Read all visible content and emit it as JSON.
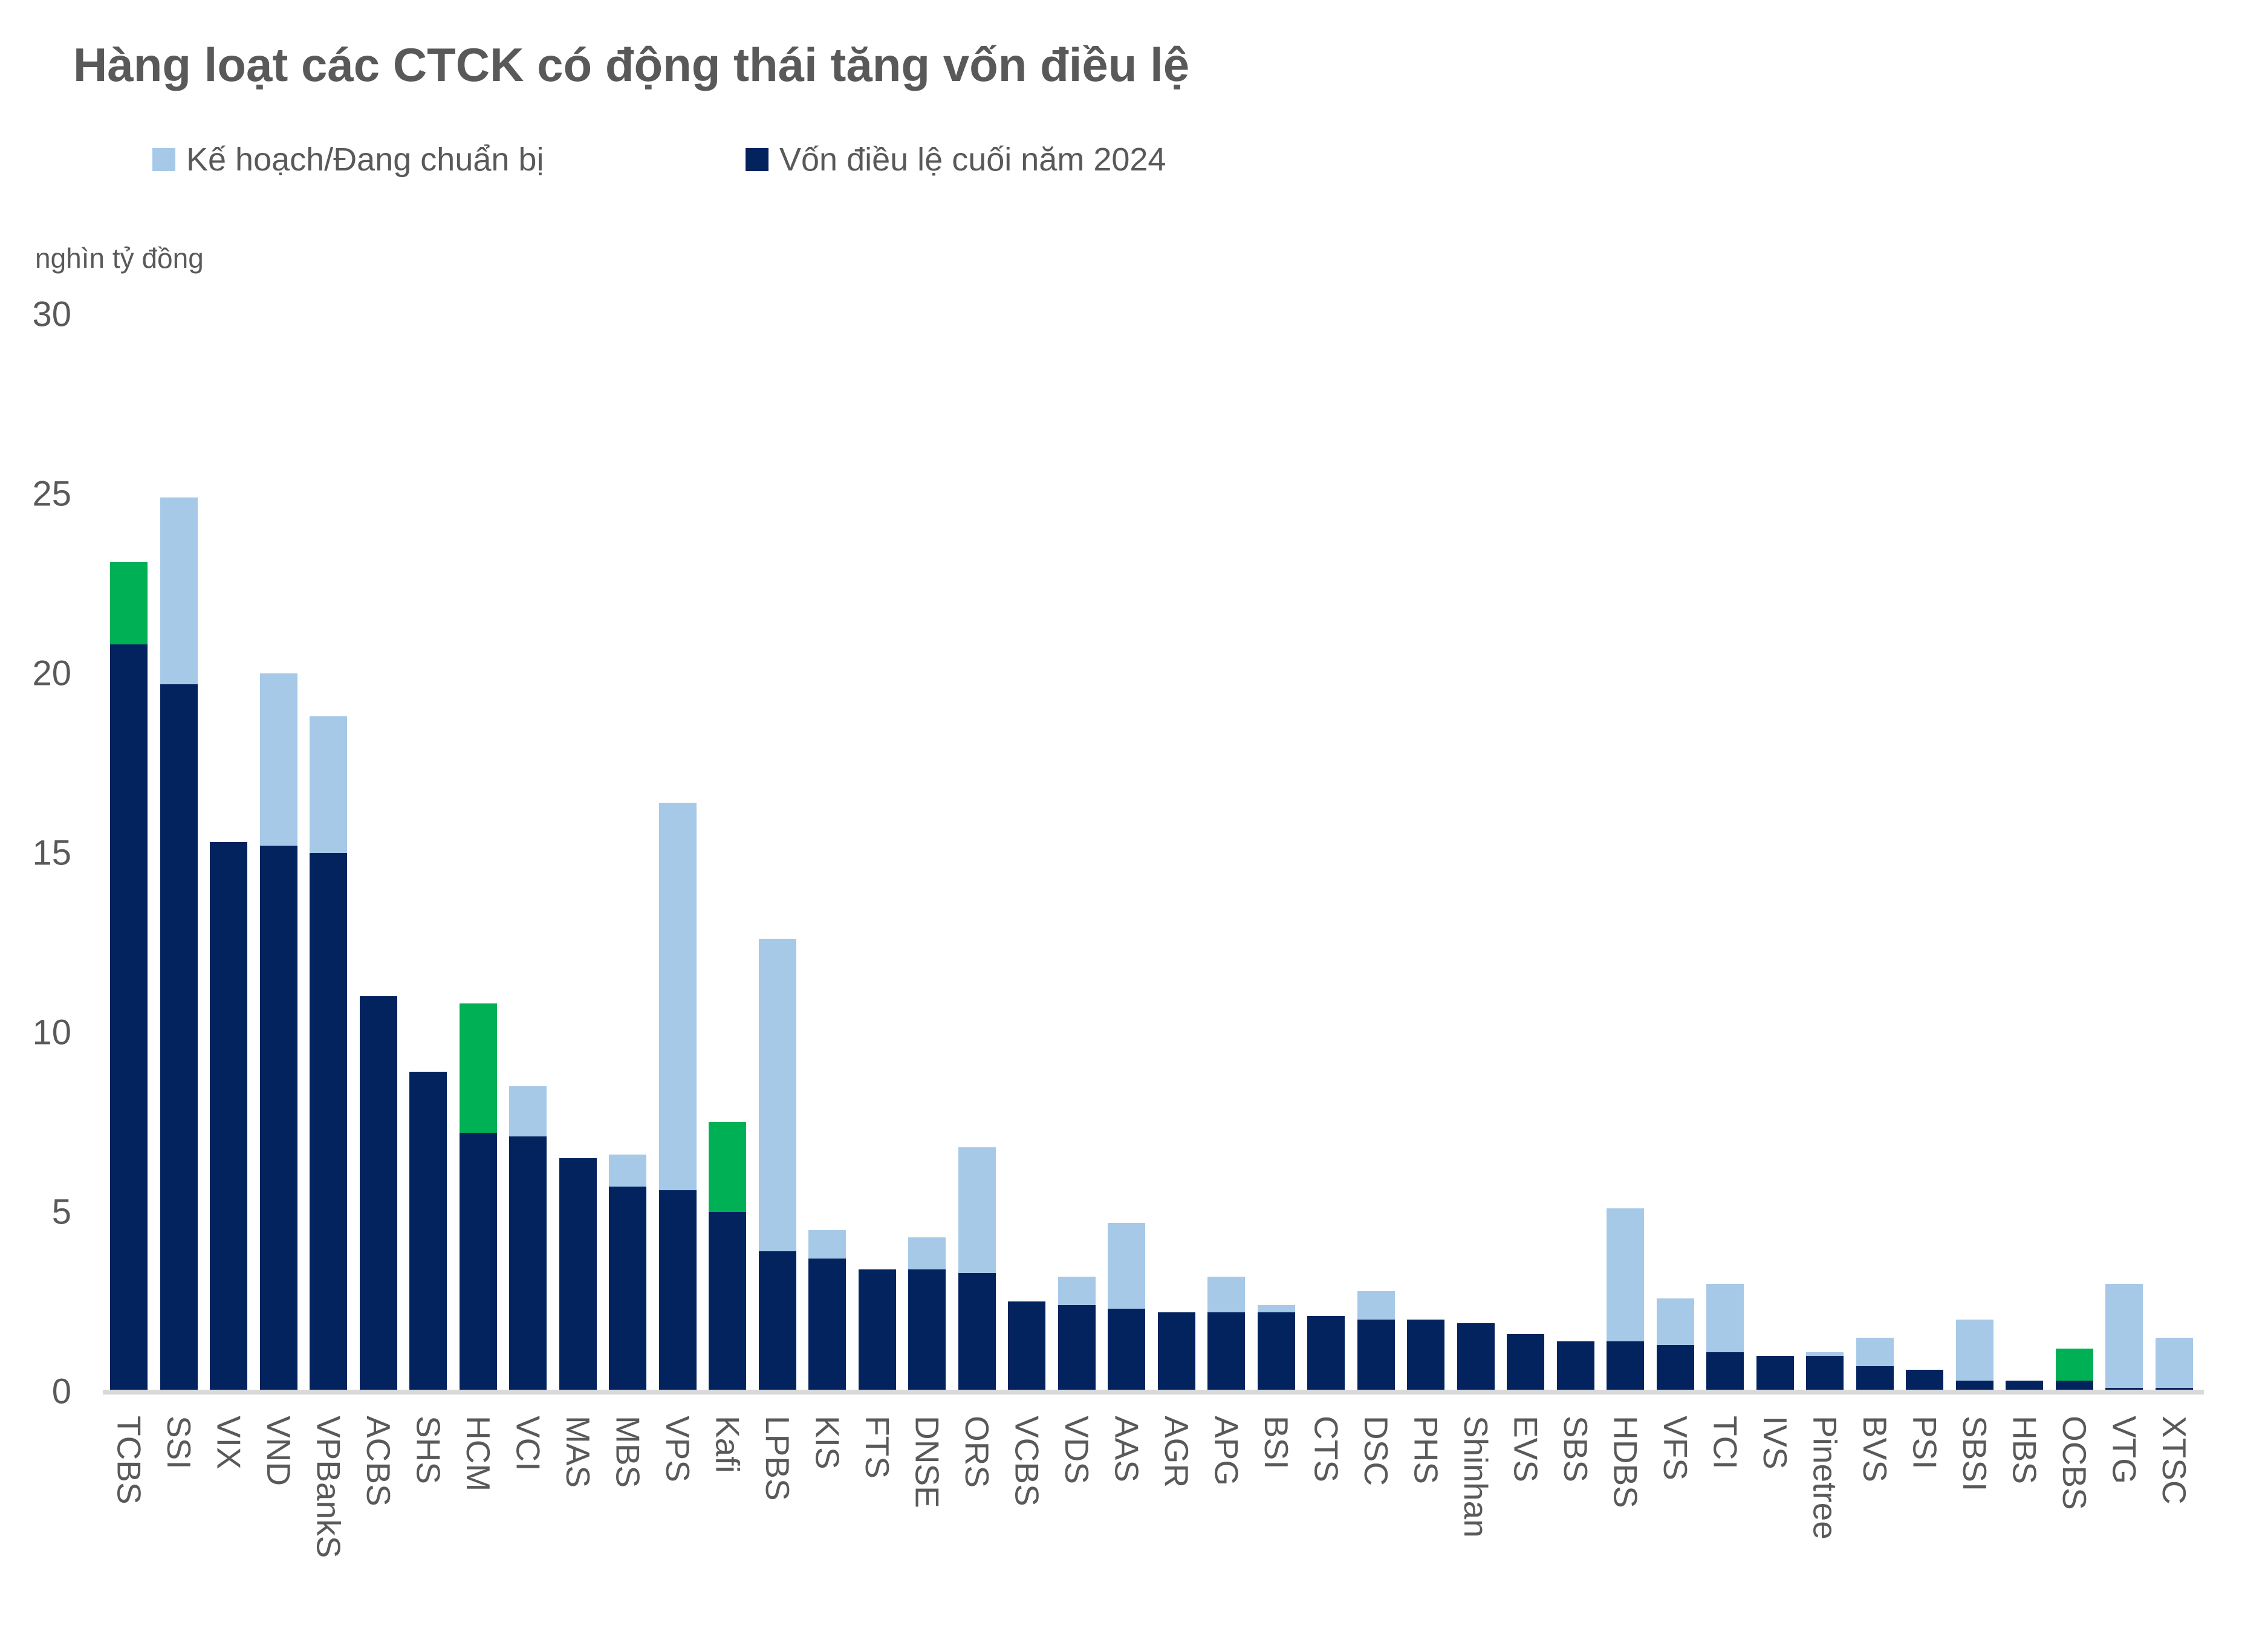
{
  "header": {
    "title": "Hàng loạt các CTCK có động thái tăng vốn điều lệ"
  },
  "legend": {
    "items": [
      {
        "label": "Kế hoạch/Đang chuẩn bị",
        "color": "#a6c9e8"
      },
      {
        "label": "Vốn điều lệ cuối năm 2024",
        "color": "#03235f"
      }
    ]
  },
  "axis": {
    "unit_label": "nghìn tỷ đồng",
    "yticks": [
      30,
      25,
      20,
      15,
      10,
      5,
      0
    ]
  },
  "chart_data": {
    "type": "bar",
    "stacked": true,
    "title": "Hàng loạt các CTCK có động thái tăng vốn điều lệ",
    "xlabel": "",
    "ylabel": "nghìn tỷ đồng",
    "ylim": [
      0,
      30
    ],
    "grid": false,
    "legend_position": "top-left",
    "categories": [
      "TCBS",
      "SSI",
      "VIX",
      "VND",
      "VPBankS",
      "ACBS",
      "SHS",
      "HCM",
      "VCI",
      "MAS",
      "MBS",
      "VPS",
      "Kafi",
      "LPBS",
      "KIS",
      "FTS",
      "DNSE",
      "ORS",
      "VCBS",
      "VDS",
      "AAS",
      "AGR",
      "APG",
      "BSI",
      "CTS",
      "DSC",
      "PHS",
      "Shinhan",
      "EVS",
      "SBS",
      "HDBS",
      "VFS",
      "TCI",
      "IVS",
      "Pinetree",
      "BVS",
      "PSI",
      "SBSI",
      "HBS",
      "OCBS",
      "VTG",
      "XTSC"
    ],
    "series": [
      {
        "name": "Vốn điều lệ cuối năm 2024",
        "color": "#03235f",
        "values": [
          20.8,
          19.7,
          15.3,
          15.2,
          15.0,
          11.0,
          8.9,
          7.2,
          7.1,
          6.5,
          5.7,
          5.6,
          5.0,
          3.9,
          3.7,
          3.4,
          3.4,
          3.3,
          2.5,
          2.4,
          2.3,
          2.2,
          2.2,
          2.2,
          2.1,
          2.0,
          2.0,
          1.9,
          1.6,
          1.4,
          1.4,
          1.3,
          1.1,
          1.0,
          1.0,
          0.7,
          0.6,
          0.3,
          0.3,
          0.3,
          0.1,
          0.1
        ]
      },
      {
        "name": "Kế hoạch/Đang chuẩn bị",
        "color": "#a6c9e8",
        "values": [
          0,
          5.2,
          0,
          4.8,
          3.8,
          0,
          0,
          0,
          1.4,
          0,
          0.9,
          10.8,
          0,
          8.7,
          0.8,
          0,
          0.9,
          3.5,
          0,
          0.8,
          2.4,
          0,
          1.0,
          0.2,
          0,
          0.8,
          0,
          0,
          0,
          0,
          3.7,
          1.3,
          1.9,
          0,
          0.1,
          0.8,
          0,
          1.7,
          0,
          0,
          2.9,
          1.4
        ]
      },
      {
        "name": "",
        "color": "#00b055",
        "values": [
          2.3,
          0,
          0,
          0,
          0,
          0,
          0,
          3.6,
          0,
          0,
          0,
          0,
          2.5,
          0,
          0,
          0,
          0,
          0,
          0,
          0,
          0,
          0,
          0,
          0,
          0,
          0,
          0,
          0,
          0,
          0,
          0,
          0,
          0,
          0,
          0,
          0,
          0,
          0,
          0,
          0.9,
          0,
          0
        ]
      }
    ]
  }
}
